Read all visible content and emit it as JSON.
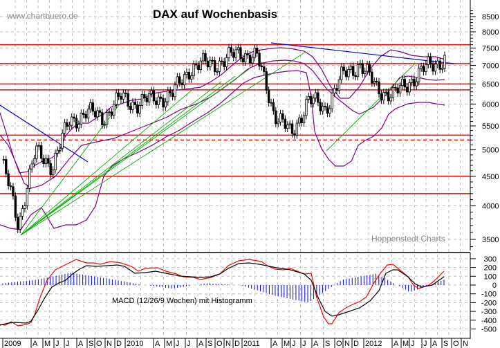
{
  "header": {
    "title": "DAX auf Wochenbasis",
    "watermark": "www.chartbuero.de",
    "source": "Hoppenstedt Charts"
  },
  "macd_panel": {
    "label": "MACD (12/26/9 Wochen) mit Histogramm"
  },
  "colors": {
    "candle": "#000000",
    "bollinger": "#800080",
    "resistance": "#ff0000",
    "downtrend": "#0000cd",
    "uptrend": "#00b000",
    "macd_line": "#000000",
    "signal_line": "#ff0000",
    "histogram": "#0000ff",
    "grid": "#c0c0c0"
  },
  "chart_data": [
    {
      "type": "candlestick",
      "title": "DAX auf Wochenbasis",
      "xlabel": "",
      "ylabel": "",
      "scale": "log",
      "ylim": [
        3400,
        8700
      ],
      "yticks": [
        3500,
        4000,
        4500,
        5000,
        5500,
        6000,
        6500,
        7000,
        7500,
        8000,
        8500
      ],
      "xtick_labels": [
        "2009",
        "A",
        "M",
        "J",
        "J",
        "A",
        "S",
        "O",
        "N",
        "D",
        "2010",
        "A",
        "M",
        "J",
        "J",
        "A",
        "S",
        "O",
        "N",
        "D",
        "2011",
        "A",
        "M",
        "J",
        "J",
        "A",
        "S",
        "O",
        "N",
        "D",
        "2012",
        "A",
        "M",
        "J",
        "J",
        "A",
        "S",
        "O",
        "N"
      ],
      "grid": true,
      "approx_weekly_close": {
        "x": [
          "2009-01",
          "2009-03",
          "2009-05",
          "2009-07",
          "2009-09",
          "2009-11",
          "2010-01",
          "2010-03",
          "2010-05",
          "2010-07",
          "2010-09",
          "2010-11",
          "2011-01",
          "2011-03",
          "2011-05",
          "2011-07",
          "2011-08",
          "2011-09",
          "2011-10",
          "2011-12",
          "2012-02",
          "2012-03",
          "2012-05",
          "2012-06",
          "2012-07",
          "2012-08",
          "2012-09"
        ],
        "values": [
          4800,
          3700,
          4950,
          4700,
          5600,
          5800,
          5700,
          6150,
          6000,
          6150,
          6200,
          6900,
          7050,
          7100,
          7400,
          7200,
          5800,
          5300,
          6100,
          5900,
          6700,
          7050,
          6400,
          6200,
          6600,
          6950,
          7200
        ]
      },
      "horizontal_lines": [
        {
          "value": 7600,
          "style": "solid",
          "color": "#ff0000"
        },
        {
          "value": 7050,
          "style": "solid",
          "color": "#ff0000"
        },
        {
          "value": 6500,
          "style": "solid",
          "color": "#ff0000"
        },
        {
          "value": 6350,
          "style": "solid",
          "color": "#ff0000"
        },
        {
          "value": 5300,
          "style": "solid",
          "color": "#ff0000"
        },
        {
          "value": 5200,
          "style": "dashed",
          "color": "#ff0000"
        },
        {
          "value": 4500,
          "style": "solid",
          "color": "#ff0000"
        },
        {
          "value": 4200,
          "style": "solid",
          "color": "#ff0000"
        }
      ],
      "trendlines": [
        {
          "name": "downtrend 2008-2009",
          "color": "#0000cd",
          "from": [
            "2008-12",
            6100
          ],
          "to": [
            "2009-08",
            4800
          ]
        },
        {
          "name": "downtrend 2011-2012",
          "color": "#0000cd",
          "from": [
            "2011-04",
            7650
          ],
          "to": [
            "2012-10",
            7050
          ]
        },
        {
          "name": "uptrend fan",
          "color": "#00b000",
          "from": [
            "2009-03",
            3550
          ],
          "to": [
            "2011-06",
            7300
          ]
        },
        {
          "name": "uptrend 2011-2012",
          "color": "#00b000",
          "from": [
            "2011-09",
            5000
          ],
          "to": [
            "2012-04",
            6950
          ]
        }
      ],
      "indicators": [
        "Bollinger Bands"
      ]
    },
    {
      "type": "line",
      "title": "MACD (12/26/9 Wochen) mit Histogramm",
      "ylim": [
        -550,
        350
      ],
      "yticks": [
        300,
        200,
        100,
        0,
        -100,
        -200,
        -300,
        -400,
        -500
      ],
      "grid": true,
      "series": [
        {
          "name": "MACD",
          "color": "#000000",
          "x": [
            "2009-01",
            "2009-03",
            "2009-05",
            "2009-07",
            "2009-09",
            "2009-11",
            "2010-01",
            "2010-04",
            "2010-07",
            "2010-10",
            "2011-01",
            "2011-04",
            "2011-07",
            "2011-09",
            "2011-10",
            "2011-12",
            "2012-02",
            "2012-04",
            "2012-06",
            "2012-08",
            "2012-09"
          ],
          "values": [
            -420,
            -450,
            -300,
            -100,
            100,
            190,
            210,
            180,
            120,
            100,
            220,
            210,
            160,
            -100,
            -320,
            -260,
            -120,
            160,
            0,
            20,
            100
          ]
        },
        {
          "name": "Signal",
          "color": "#ff0000",
          "x": [
            "2009-01",
            "2009-03",
            "2009-05",
            "2009-07",
            "2009-09",
            "2009-11",
            "2010-01",
            "2010-04",
            "2010-07",
            "2010-10",
            "2011-01",
            "2011-04",
            "2011-07",
            "2011-09",
            "2011-10",
            "2011-12",
            "2012-02",
            "2012-04",
            "2012-06",
            "2012-08",
            "2012-09"
          ],
          "values": [
            -450,
            -420,
            -200,
            20,
            160,
            230,
            200,
            160,
            100,
            110,
            250,
            190,
            150,
            -300,
            -480,
            -200,
            -30,
            210,
            -60,
            40,
            170
          ]
        },
        {
          "name": "Histogram",
          "color": "#0000ff",
          "x": [
            "2009-01",
            "2009-05",
            "2009-07",
            "2009-09",
            "2010-01",
            "2010-06",
            "2011-01",
            "2011-06",
            "2011-09",
            "2011-10",
            "2012-01",
            "2012-03",
            "2012-06",
            "2012-09"
          ],
          "values": [
            20,
            60,
            140,
            80,
            10,
            -40,
            20,
            0,
            -120,
            -200,
            60,
            130,
            -80,
            60
          ]
        }
      ]
    }
  ]
}
